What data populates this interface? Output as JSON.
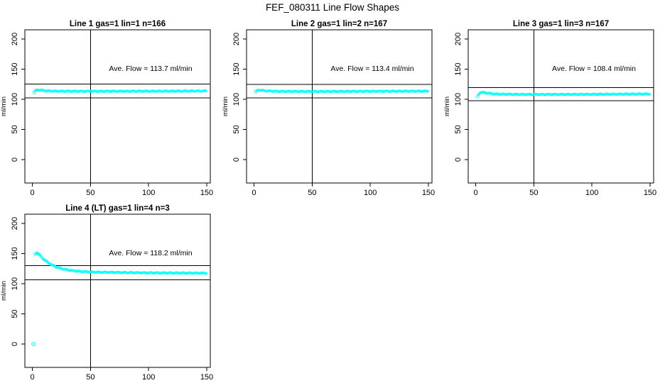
{
  "title": "FEF_080311  Line Flow Shapes",
  "point_color": "#00ffff",
  "axis_color": "#000000",
  "chart_data": {
    "type": "scatter",
    "layout": "2x3 grid, 4 panels used",
    "x_axis": {
      "ticks": [
        0,
        50,
        100,
        150
      ],
      "range_shown": [
        -6,
        153
      ]
    },
    "y_axis": {
      "label": "ml/min",
      "ticks": [
        0,
        50,
        100,
        150,
        200
      ],
      "range_shown": [
        -38,
        214
      ]
    },
    "panels": [
      {
        "title": "Line 1 gas=1 lin=1 n=166",
        "annotation": "Ave. Flow =  113.7  ml/min",
        "ave_flow": 113.7,
        "n": 166,
        "ylabel": "ml/min",
        "x_ticks": [
          0,
          50,
          100,
          150
        ],
        "y_ticks": [
          0,
          50,
          100,
          150,
          200
        ],
        "vline_x": 50,
        "hlines": [
          102.3,
          125.1
        ],
        "curve": [
          [
            1.5,
            111
          ],
          [
            2.5,
            114
          ],
          [
            4,
            115.5
          ],
          [
            6,
            115.5
          ],
          [
            8,
            115
          ],
          [
            12,
            114
          ],
          [
            20,
            113.5
          ],
          [
            50,
            113.3
          ],
          [
            100,
            113.5
          ],
          [
            150,
            113.8
          ]
        ],
        "outliers": [],
        "x_start": 1.5,
        "x_end": 150,
        "point_step": 0.8
      },
      {
        "title": "Line 2 gas=1 lin=2 n=167",
        "annotation": "Ave. Flow =  113.4  ml/min",
        "ave_flow": 113.4,
        "n": 167,
        "ylabel": "ml/min",
        "x_ticks": [
          0,
          50,
          100,
          150
        ],
        "y_ticks": [
          0,
          50,
          100,
          150,
          200
        ],
        "vline_x": 50,
        "hlines": [
          102.1,
          124.7
        ],
        "curve": [
          [
            1.5,
            112
          ],
          [
            2.5,
            114.5
          ],
          [
            4,
            115.5
          ],
          [
            6,
            115
          ],
          [
            10,
            114
          ],
          [
            20,
            113.2
          ],
          [
            50,
            113
          ],
          [
            100,
            113.3
          ],
          [
            150,
            113.6
          ]
        ],
        "outliers": [],
        "x_start": 1.5,
        "x_end": 150,
        "point_step": 0.8
      },
      {
        "title": "Line 3 gas=1 lin=3 n=167",
        "annotation": "Ave. Flow =  108.4  ml/min",
        "ave_flow": 108.4,
        "n": 167,
        "ylabel": "ml/min",
        "x_ticks": [
          0,
          50,
          100,
          150
        ],
        "y_ticks": [
          0,
          50,
          100,
          150,
          200
        ],
        "vline_x": 50,
        "hlines": [
          97.6,
          119.2
        ],
        "curve": [
          [
            1.5,
            104
          ],
          [
            2.5,
            108
          ],
          [
            4,
            111.5
          ],
          [
            6,
            111.5
          ],
          [
            9,
            110.5
          ],
          [
            15,
            109
          ],
          [
            25,
            108.3
          ],
          [
            50,
            108
          ],
          [
            100,
            108.3
          ],
          [
            150,
            108.8
          ]
        ],
        "outliers": [],
        "x_start": 1.5,
        "x_end": 150,
        "point_step": 0.8
      },
      {
        "title": "Line 4 (LT) gas=1 lin=4 n=3",
        "annotation": "Ave. Flow =  118.2  ml/min",
        "ave_flow": 118.2,
        "n": 3,
        "ylabel": "ml/min",
        "x_ticks": [
          0,
          50,
          100,
          150
        ],
        "y_ticks": [
          0,
          50,
          100,
          150,
          200
        ],
        "vline_x": 50,
        "hlines": [
          106.4,
          130.0
        ],
        "curve": [
          [
            2.5,
            149
          ],
          [
            4,
            152
          ],
          [
            6,
            148
          ],
          [
            9,
            142
          ],
          [
            12,
            137
          ],
          [
            16,
            132
          ],
          [
            20,
            128
          ],
          [
            25,
            125
          ],
          [
            30,
            123
          ],
          [
            35,
            121.5
          ],
          [
            40,
            120.5
          ],
          [
            50,
            119.5
          ],
          [
            60,
            119
          ],
          [
            80,
            118.5
          ],
          [
            100,
            118
          ],
          [
            150,
            117.5
          ]
        ],
        "outliers": [
          [
            1,
            0
          ]
        ],
        "x_start": 2.5,
        "x_end": 150,
        "point_step": 0.8
      }
    ]
  }
}
